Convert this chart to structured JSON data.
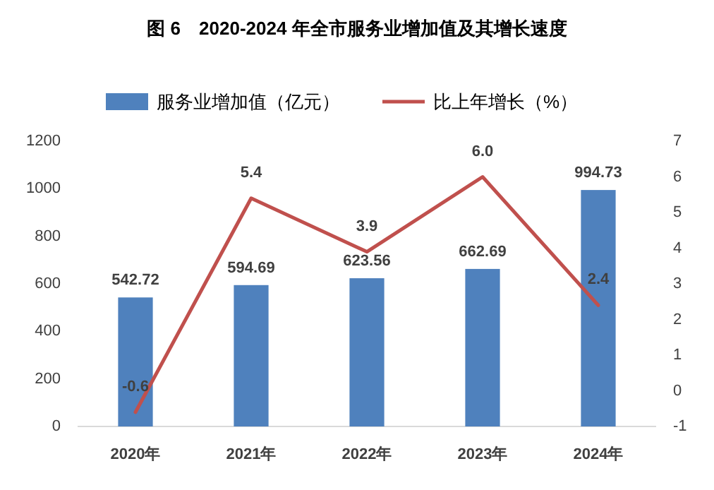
{
  "chart_data": {
    "type": "bar",
    "title": "图 6　2020-2024 年全市服务业增加值及其增长速度",
    "categories": [
      "2020年",
      "2021年",
      "2022年",
      "2023年",
      "2024年"
    ],
    "series": [
      {
        "name": "服务业增加值（亿元）",
        "color": "#4f81bd",
        "values": [
          542.72,
          594.69,
          623.56,
          662.69,
          994.73
        ],
        "value_labels": [
          "542.72",
          "594.69",
          "623.56",
          "662.69",
          "994.73"
        ]
      },
      {
        "name": "比上年增长（%）",
        "type": "line",
        "axis": "y2",
        "color": "#c0504d",
        "values": [
          -0.6,
          5.4,
          3.9,
          6.0,
          2.4
        ],
        "value_labels": [
          "-0.6",
          "5.4",
          "3.9",
          "6.0",
          "2.4"
        ]
      }
    ],
    "ylim": [
      0,
      1200
    ],
    "yticks": [
      0,
      200,
      400,
      600,
      800,
      1000,
      1200
    ],
    "y2lim": [
      -1,
      7
    ],
    "y2ticks": [
      -1,
      0,
      1,
      2,
      3,
      4,
      5,
      6,
      7
    ],
    "legend": "top"
  }
}
